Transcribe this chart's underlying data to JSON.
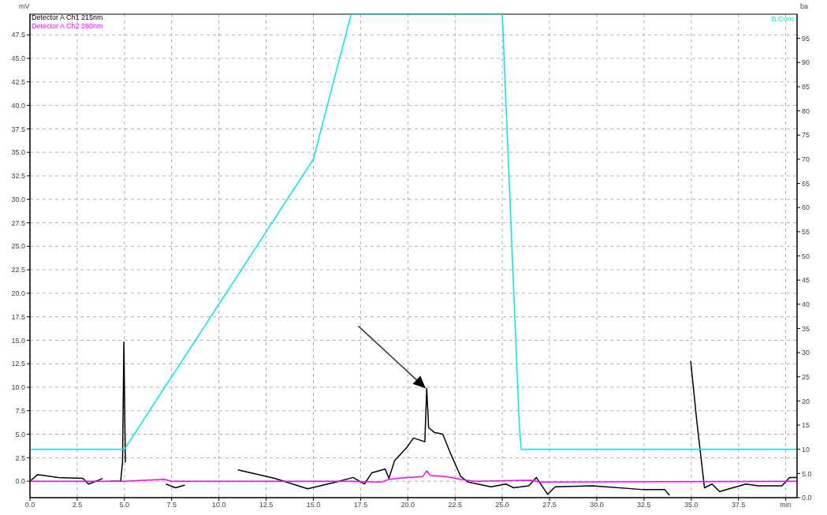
{
  "chart_data": {
    "type": "line",
    "ylabel": "mV",
    "y2label": "ba",
    "legend": "top left",
    "grid": true,
    "marker": "none",
    "line_style": "solid",
    "xlim": [
      0,
      40.6
    ],
    "xticks": [
      {
        "value": 0,
        "label": "0.0"
      },
      {
        "value": 2.5,
        "label": "2.5"
      },
      {
        "value": 5,
        "label": "5.0"
      },
      {
        "value": 7.5,
        "label": "7.5"
      },
      {
        "value": 10,
        "label": "10.0"
      },
      {
        "value": 12.5,
        "label": "12.5"
      },
      {
        "value": 15,
        "label": "15.0"
      },
      {
        "value": 17.5,
        "label": "17.5"
      },
      {
        "value": 20,
        "label": "20.0"
      },
      {
        "value": 22.5,
        "label": "22.5"
      },
      {
        "value": 25,
        "label": "25.0"
      },
      {
        "value": 27.5,
        "label": "27.5"
      },
      {
        "value": 30,
        "label": "30.0"
      },
      {
        "value": 32.5,
        "label": "32.5"
      },
      {
        "value": 35,
        "label": "35.0"
      },
      {
        "value": 37.5,
        "label": "37.5"
      },
      {
        "value": 40,
        "label": "min"
      }
    ],
    "ylim": [
      -1.75,
      49.7
    ],
    "yticks": [
      {
        "value": 0,
        "label": "0.0"
      },
      {
        "value": 2.5,
        "label": "2.5"
      },
      {
        "value": 5,
        "label": "5.0"
      },
      {
        "value": 7.5,
        "label": "7.5"
      },
      {
        "value": 10,
        "label": "10.0"
      },
      {
        "value": 12.5,
        "label": "12.5"
      },
      {
        "value": 15,
        "label": "15.0"
      },
      {
        "value": 17.5,
        "label": "17.5"
      },
      {
        "value": 20,
        "label": "20.0"
      },
      {
        "value": 22.5,
        "label": "22.5"
      },
      {
        "value": 25,
        "label": "25.0"
      },
      {
        "value": 27.5,
        "label": "27.5"
      },
      {
        "value": 30,
        "label": "30.0"
      },
      {
        "value": 32.5,
        "label": "32.5"
      },
      {
        "value": 35,
        "label": "35.0"
      },
      {
        "value": 37.5,
        "label": "37.5"
      },
      {
        "value": 40,
        "label": "40.0"
      },
      {
        "value": 42.5,
        "label": "42.5"
      },
      {
        "value": 45,
        "label": "45.0"
      },
      {
        "value": 47.5,
        "label": "47.5"
      }
    ],
    "y2lim": [
      0,
      100
    ],
    "y2ticks": [
      {
        "value": 0,
        "label": "0.0"
      },
      {
        "value": 5,
        "label": "5.0"
      },
      10,
      15,
      20,
      25,
      30,
      35,
      40,
      45,
      50,
      55,
      60,
      65,
      70,
      75,
      80,
      85,
      90,
      95
    ],
    "series": [
      {
        "name": "Detector A Ch1 215nm",
        "color": "#000000",
        "x": [
          0,
          0.4,
          1.5,
          2.8,
          3.1,
          3.5,
          3.85,
          3.95,
          4.15,
          4.17,
          4.25,
          4.8,
          4.9,
          4.97,
          5.05,
          5.34,
          6.8,
          7.2,
          7.7,
          8.2,
          8.6,
          9.8,
          11.0,
          12.95,
          14.7,
          16.2,
          17.1,
          17.7,
          18.1,
          18.8,
          19.0,
          19.3,
          19.95,
          20.3,
          20.9,
          21.0,
          21.1,
          21.4,
          21.85,
          22.25,
          22.8,
          23.2,
          24.4,
          25.2,
          25.6,
          26.4,
          26.8,
          27.4,
          27.8,
          29.8,
          32.5,
          33.6,
          33.85,
          34.65,
          34.9,
          34.97,
          35.3,
          35.7,
          36.1,
          36.5,
          37.9,
          38.55,
          39.8,
          40.2,
          40.6
        ],
        "values": [
          0,
          0.7,
          0.4,
          0.3,
          -0.3,
          0,
          0.3,
          null,
          null,
          null,
          0,
          0,
          2,
          14.8,
          2,
          null,
          null,
          -0.3,
          -0.7,
          -0.4,
          null,
          null,
          1.2,
          0.3,
          -0.8,
          -0.1,
          0.4,
          -0.3,
          0.9,
          1.3,
          0.3,
          2.2,
          3.6,
          4.6,
          4.2,
          9.9,
          5.7,
          5.2,
          5.0,
          3.0,
          0.5,
          -0.1,
          -0.6,
          -0.3,
          -0.7,
          -0.5,
          0.4,
          -1.4,
          -0.6,
          -0.5,
          -0.9,
          -0.9,
          -1.5,
          null,
          null,
          12.8,
          6.3,
          -0.7,
          -0.3,
          -1.1,
          -0.3,
          -0.5,
          -0.5,
          0.4,
          0.4
        ]
      },
      {
        "name": "Detector A Ch2 280nm",
        "color": "#ff00ff",
        "x": [
          0,
          5,
          7.1,
          7.5,
          17,
          18.6,
          19,
          20,
          20.8,
          21.0,
          21.2,
          22.0,
          22.8,
          23.5,
          26.5,
          27,
          40.6
        ],
        "values": [
          0,
          0,
          0.2,
          0,
          0,
          -0.1,
          0.2,
          0.4,
          0.5,
          1.1,
          0.6,
          0.5,
          0.2,
          0,
          0.1,
          -0.1,
          0
        ]
      },
      {
        "name": "B.Conc",
        "color": "#00e5ee",
        "axis": "y2",
        "x": [
          0,
          5,
          15,
          17,
          25,
          25.9,
          26,
          40.6
        ],
        "values": [
          10,
          10,
          70,
          100,
          100,
          15,
          10,
          10
        ]
      }
    ]
  }
}
